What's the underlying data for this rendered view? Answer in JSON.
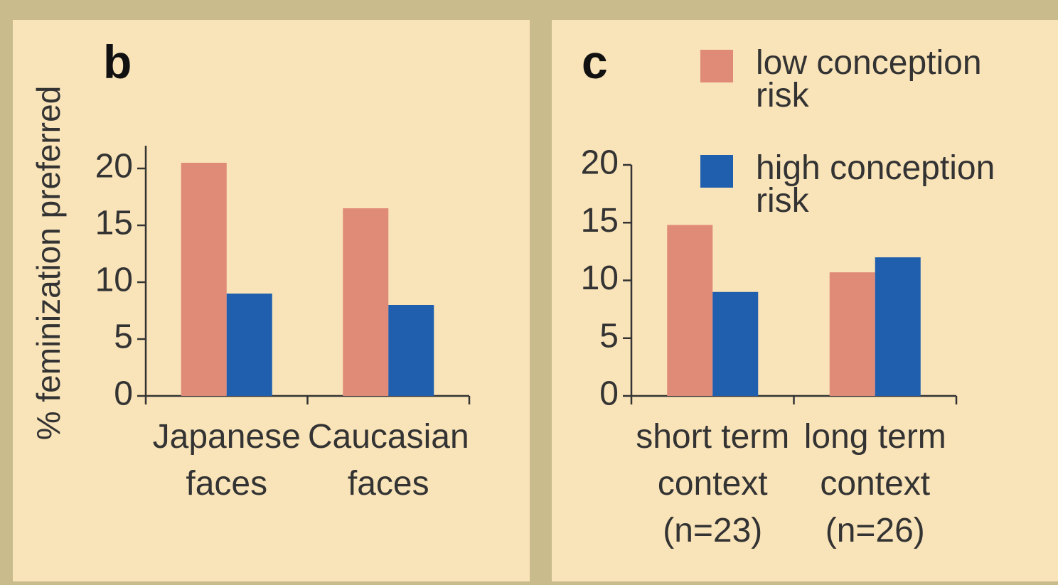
{
  "chart_data": [
    {
      "type": "bar",
      "panel_label": "b",
      "ylabel": "% feminization preferred",
      "categories": [
        "Japanese faces",
        "Caucasian faces"
      ],
      "series": [
        {
          "name": "low conception risk",
          "color": "#e08a78",
          "values": [
            20.5,
            16.5
          ]
        },
        {
          "name": "high conception risk",
          "color": "#1f5fae",
          "values": [
            9,
            8
          ]
        }
      ],
      "ylim": [
        0,
        22
      ],
      "yticks": [
        0,
        5,
        10,
        15,
        20
      ],
      "legend": "none"
    },
    {
      "type": "bar",
      "panel_label": "c",
      "categories": [
        "short term context (n=23)",
        "long term context (n=26)"
      ],
      "series": [
        {
          "name": "low conception risk",
          "color": "#e08a78",
          "values": [
            14.8,
            10.7
          ]
        },
        {
          "name": "high conception risk",
          "color": "#1f5fae",
          "values": [
            9,
            12
          ]
        }
      ],
      "ylim": [
        0,
        20
      ],
      "yticks": [
        0,
        5,
        10,
        15,
        20
      ],
      "legend": "top-right"
    }
  ]
}
